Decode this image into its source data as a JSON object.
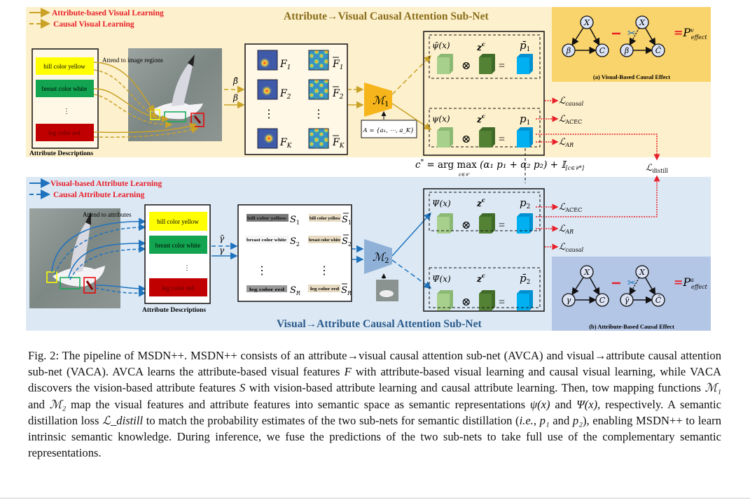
{
  "figure": {
    "top": {
      "title": "Attribute→Visual Causal Attention Sub-Net",
      "legend": [
        "Attribute-based Visual Learning",
        "Causal Visual Learning"
      ],
      "attend_label": "Attend to image regions",
      "attributes": [
        "bill color yellow",
        "breast color white",
        "⋮",
        "leg color red"
      ],
      "attributes_caption": "Attribute Descriptions",
      "beta_bar": "β̄",
      "beta": "β",
      "features": [
        "F",
        "F",
        "F"
      ],
      "feature_subs": [
        "1",
        "2",
        "K"
      ],
      "mapping": "ℳ",
      "mapping_sub": "1",
      "attr_set": "A = {a₁, ⋯, a_K}",
      "row1": {
        "psi": "ψ̄(x)",
        "z": "z",
        "z_sup": "c",
        "p": "p̄",
        "p_sub": "1"
      },
      "row2": {
        "psi": "ψ(x)",
        "z": "z",
        "z_sup": "c",
        "p": "p",
        "p_sub": "1"
      },
      "losses": [
        {
          "name": "ℒ",
          "sub": "causal"
        },
        {
          "name": "ℒ",
          "sub": "ACEC"
        },
        {
          "name": "ℒ",
          "sub": "AR"
        }
      ],
      "effect": {
        "caption": "(a) Visual-Based Causal Effect",
        "nodes": [
          "X",
          "β",
          "C",
          "X",
          "β",
          "C̄"
        ],
        "result": "P",
        "result_sup": "v",
        "result_sub": "effect"
      }
    },
    "fusion_formula": "c* = argmax_{c∈C} (α₁p₁ + α₂p₂) + 𝕀[c∈C*]",
    "fusion": {
      "lhs": "c",
      "lhs_sup": "*",
      "eq": " = arg max ",
      "under": "c∈𝒞",
      "body": "(α₁ p₁ + α₂ p₂) + 𝕀",
      "idx": "[c∈𝒞*]"
    },
    "distill": {
      "name": "ℒ",
      "sub": "distill"
    },
    "bottom": {
      "title": "Visual→Attribute Causal Attention Sub-Net",
      "legend": [
        "Visual-based Attribute Learning",
        "Causal Attribute Learning"
      ],
      "attend_label": "Attend to attributes",
      "attributes": [
        "bill color yellow",
        "breast color white",
        "⋮",
        "leg color red"
      ],
      "attributes_caption": "Attribute Descriptions",
      "gamma_bar": "γ̄",
      "gamma": "γ",
      "slices": [
        "bill color yellow",
        "breast color white",
        "leg color red"
      ],
      "features": [
        "S",
        "S",
        "S"
      ],
      "feature_subs": [
        "1",
        "2",
        "R"
      ],
      "mapping": "ℳ",
      "mapping_sub": "2",
      "row1": {
        "psi": "Ψ(x)",
        "z": "z",
        "z_sup": "c",
        "p": "p",
        "p_sub": "2"
      },
      "row2": {
        "psi": "Ψ̄(x)",
        "z": "z",
        "z_sup": "c",
        "p": "p̄",
        "p_sub": "2"
      },
      "losses": [
        {
          "name": "ℒ",
          "sub": "ACEC"
        },
        {
          "name": "ℒ",
          "sub": "AR"
        },
        {
          "name": "ℒ",
          "sub": "causal"
        }
      ],
      "effect": {
        "caption": "(b) Attribute-Based Causal Effect",
        "nodes": [
          "X",
          "γ",
          "C",
          "X",
          "γ̄",
          "C̄"
        ],
        "result": "P",
        "result_sup": "a",
        "result_sub": "effect"
      }
    },
    "colors": {
      "top_bg": "#fdf0cc",
      "bottom_bg": "#dce9f5",
      "gold": "#c9a227",
      "blue": "#1f73bd",
      "red_text": "#e8202a",
      "effect_a": "#f9d36b",
      "effect_b": "#b3c6e6",
      "loss_red": "#e8202a"
    }
  },
  "caption": [
    {
      "t": "Fig. 2: The pipeline of MSDN++. MSDN++ consists of an attribute→visual causal attention sub-net (AVCA) and visual→attribute causal attention sub-net (VACA). AVCA learns the attribute-based visual features "
    },
    {
      "t": "F",
      "i": true
    },
    {
      "t": " with attribute-based visual learning and causal visual learning, while VACA discovers the vision-based attribute features "
    },
    {
      "t": "S",
      "i": true
    },
    {
      "t": " with vision-based attribute learning and  causal attribute learning. Then, tow mapping functions "
    },
    {
      "t": "ℳ₁",
      "i": true
    },
    {
      "t": " and "
    },
    {
      "t": "ℳ₂",
      "i": true
    },
    {
      "t": " map the visual features and attribute features into semantic space as semantic representations "
    },
    {
      "t": "ψ(x)",
      "i": true
    },
    {
      "t": " and "
    },
    {
      "t": "Ψ(x)",
      "i": true
    },
    {
      "t": ", respectively. A semantic distillation loss "
    },
    {
      "t": "ℒ_distill",
      "i": true
    },
    {
      "t": " to match the probability estimates of the two sub-nets for semantic distillation ("
    },
    {
      "t": "i.e.",
      "i": true
    },
    {
      "t": ", "
    },
    {
      "t": "p₁",
      "i": true
    },
    {
      "t": " and "
    },
    {
      "t": "p₂",
      "i": true
    },
    {
      "t": "), enabling MSDN++ to learn intrinsic semantic knowledge. During inference, we fuse the predictions of the two sub-nets to take full use of the complementary semantic representations."
    }
  ]
}
